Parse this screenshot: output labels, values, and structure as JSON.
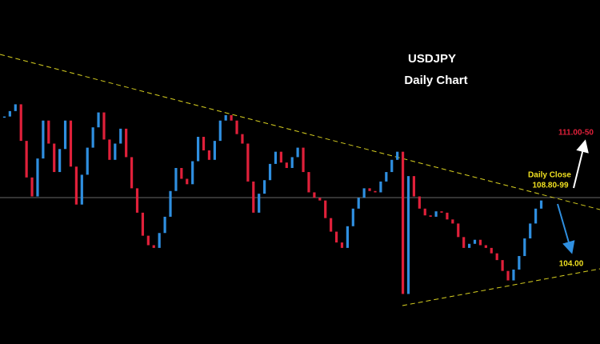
{
  "chart_data": {
    "type": "candlestick",
    "title": "USDJPY",
    "subtitle": "Daily Chart",
    "annotations": {
      "target": "111.00-50",
      "close_label": "Daily Close",
      "close_value": "108.80-99",
      "support": "104.00"
    },
    "up_color": "#2f8fe0",
    "down_color": "#e0203a",
    "ylim": [
      101,
      116
    ],
    "values": [
      114.9,
      115.3,
      115.8,
      113.1,
      110.4,
      109.0,
      111.8,
      114.6,
      112.9,
      110.8,
      112.5,
      114.6,
      111.2,
      108.4,
      110.6,
      112.6,
      114.1,
      115.2,
      113.2,
      111.7,
      112.9,
      114.0,
      111.9,
      109.6,
      107.8,
      106.1,
      105.4,
      105.2,
      106.3,
      107.5,
      109.4,
      111.1,
      110.3,
      109.9,
      111.6,
      113.4,
      112.4,
      111.7,
      113.1,
      114.6,
      115.0,
      114.6,
      113.6,
      112.9,
      110.1,
      107.8,
      109.2,
      110.2,
      111.4,
      112.3,
      111.5,
      111.1,
      111.9,
      112.6,
      110.8,
      109.3,
      108.9,
      108.7,
      107.4,
      106.4,
      105.6,
      105.2,
      106.8,
      108.1,
      108.9,
      109.6,
      109.4,
      109.3,
      110.1,
      110.8,
      111.7,
      112.3,
      101.8,
      110.5,
      109.0,
      108.1,
      107.6,
      107.5,
      107.9,
      107.8,
      107.3,
      107.0,
      106.0,
      105.2,
      105.5,
      105.8,
      105.4,
      105.2,
      104.8,
      104.3,
      103.5,
      102.8,
      103.6,
      104.6,
      105.9,
      107.0,
      108.1,
      108.7
    ]
  }
}
